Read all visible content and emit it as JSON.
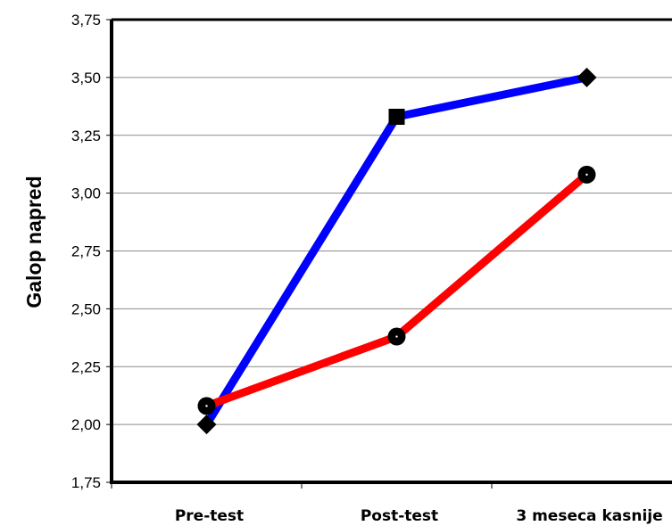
{
  "chart_data": {
    "type": "line",
    "title": "",
    "xlabel": "",
    "ylabel": "Galop napred",
    "categories": [
      "Pre-test",
      "Post-test",
      "3 meseca kasnije"
    ],
    "yticks": [
      "1,75",
      "2,00",
      "2,25",
      "2,50",
      "2,75",
      "3,00",
      "3,25",
      "3,50",
      "3,75"
    ],
    "ylim": [
      1.75,
      3.75
    ],
    "grid": true,
    "legend": "none",
    "series": [
      {
        "color": "#0000ff",
        "marker": "diamond-square-diamond",
        "values": [
          2.0,
          3.33,
          3.5
        ]
      },
      {
        "color": "#ff0000",
        "marker": "circle",
        "values": [
          2.08,
          2.38,
          3.08
        ]
      }
    ]
  }
}
